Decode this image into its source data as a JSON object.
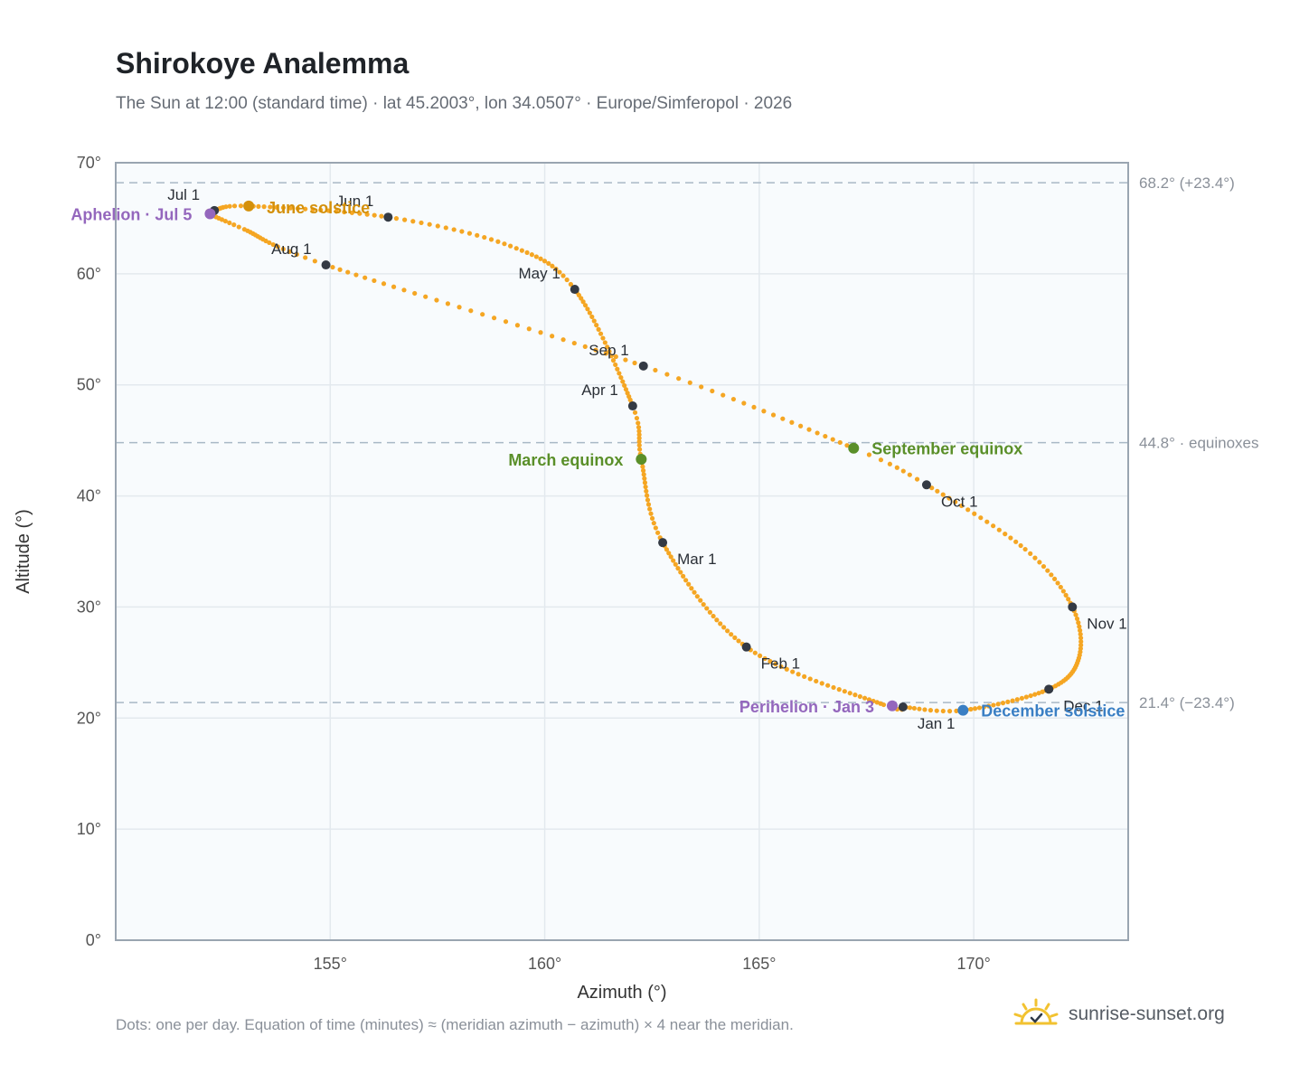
{
  "title": "Shirokoye Analemma",
  "subtitle": "The Sun at 12:00 (standard time) · lat 45.2003°, lon 34.0507° · Europe/Simferopol · 2026",
  "footnote": "Dots: one per day. Equation of time (minutes) ≈ (meridian azimuth − azimuth) × 4 near the meridian.",
  "brand": {
    "name": "sunrise-sunset.org",
    "logo_icon": "sun-check-icon"
  },
  "colors": {
    "path": "#f5a623",
    "month_dot": "#343a44",
    "june_solstice": "#d4900a",
    "december_solstice": "#3a7fc4",
    "equinox": "#5a8f29",
    "apsis": "#9467bd",
    "reference_line": "#a9b8c6",
    "plot_bg": "#f8fbfd",
    "grid": "#e3e9ee",
    "frame": "#9aa5b1"
  },
  "chart_data": {
    "type": "scatter",
    "xlabel": "Azimuth (°)",
    "ylabel": "Altitude (°)",
    "xlim": [
      150,
      173.6
    ],
    "ylim": [
      0,
      70
    ],
    "x_ticks": [
      {
        "value": 155,
        "label": "155°"
      },
      {
        "value": 160,
        "label": "160°"
      },
      {
        "value": 165,
        "label": "165°"
      },
      {
        "value": 170,
        "label": "170°"
      }
    ],
    "y_ticks": [
      {
        "value": 0,
        "label": "0°"
      },
      {
        "value": 10,
        "label": "10°"
      },
      {
        "value": 20,
        "label": "20°"
      },
      {
        "value": 30,
        "label": "30°"
      },
      {
        "value": 40,
        "label": "40°"
      },
      {
        "value": 50,
        "label": "50°"
      },
      {
        "value": 60,
        "label": "60°"
      },
      {
        "value": 70,
        "label": "70°"
      }
    ],
    "grid": true,
    "reference_lines": [
      {
        "value": 68.2,
        "label": "68.2° (+23.4°)"
      },
      {
        "value": 44.8,
        "label": "44.8° · equinoxes"
      },
      {
        "value": 21.4,
        "label": "21.4° (−23.4°)"
      }
    ],
    "path_dots_per_day": true,
    "analemma_anchors": [
      {
        "day": 0,
        "x": 168.35,
        "y": 21.0
      },
      {
        "day": 4,
        "x": 167.9,
        "y": 21.2
      },
      {
        "day": 31,
        "x": 164.7,
        "y": 26.4
      },
      {
        "day": 59,
        "x": 162.75,
        "y": 35.8
      },
      {
        "day": 78,
        "x": 162.25,
        "y": 43.3
      },
      {
        "day": 90,
        "x": 162.05,
        "y": 48.1
      },
      {
        "day": 120,
        "x": 160.7,
        "y": 58.6
      },
      {
        "day": 135,
        "x": 159.2,
        "y": 62.5
      },
      {
        "day": 151,
        "x": 156.35,
        "y": 65.1
      },
      {
        "day": 171,
        "x": 153.1,
        "y": 66.1
      },
      {
        "day": 181,
        "x": 152.3,
        "y": 65.7
      },
      {
        "day": 185,
        "x": 152.2,
        "y": 65.4
      },
      {
        "day": 195,
        "x": 153.0,
        "y": 64.0
      },
      {
        "day": 212,
        "x": 154.9,
        "y": 60.8
      },
      {
        "day": 243,
        "x": 162.3,
        "y": 51.7
      },
      {
        "day": 265,
        "x": 167.2,
        "y": 44.3
      },
      {
        "day": 273,
        "x": 168.9,
        "y": 41.0
      },
      {
        "day": 290,
        "x": 171.2,
        "y": 35.2
      },
      {
        "day": 304,
        "x": 172.3,
        "y": 30.0
      },
      {
        "day": 318,
        "x": 172.45,
        "y": 25.4
      },
      {
        "day": 334,
        "x": 171.75,
        "y": 22.6
      },
      {
        "day": 354,
        "x": 169.75,
        "y": 20.7
      },
      {
        "day": 365,
        "x": 168.35,
        "y": 21.0
      }
    ],
    "month_markers": [
      {
        "label": "Jan 1",
        "x": 168.35,
        "y": 21.0,
        "anchor": "start",
        "dx": 16,
        "dy": 24
      },
      {
        "label": "Feb 1",
        "x": 164.7,
        "y": 26.4,
        "anchor": "start",
        "dx": 16,
        "dy": 24
      },
      {
        "label": "Mar 1",
        "x": 162.75,
        "y": 35.8,
        "anchor": "start",
        "dx": 16,
        "dy": 24
      },
      {
        "label": "Apr 1",
        "x": 162.05,
        "y": 48.1,
        "anchor": "end",
        "dx": -16,
        "dy": -12
      },
      {
        "label": "May 1",
        "x": 160.7,
        "y": 58.6,
        "anchor": "end",
        "dx": -16,
        "dy": -12
      },
      {
        "label": "Jun 1",
        "x": 156.35,
        "y": 65.1,
        "anchor": "end",
        "dx": -16,
        "dy": -12
      },
      {
        "label": "Jul 1",
        "x": 152.3,
        "y": 65.7,
        "anchor": "end",
        "dx": -16,
        "dy": -12
      },
      {
        "label": "Aug 1",
        "x": 154.9,
        "y": 60.8,
        "anchor": "end",
        "dx": -16,
        "dy": -12
      },
      {
        "label": "Sep 1",
        "x": 162.3,
        "y": 51.7,
        "anchor": "end",
        "dx": -16,
        "dy": -12
      },
      {
        "label": "Oct 1",
        "x": 168.9,
        "y": 41.0,
        "anchor": "start",
        "dx": 16,
        "dy": 24
      },
      {
        "label": "Nov 1",
        "x": 172.3,
        "y": 30.0,
        "anchor": "start",
        "dx": 16,
        "dy": 24
      },
      {
        "label": "Dec 1",
        "x": 171.75,
        "y": 22.6,
        "anchor": "start",
        "dx": 16,
        "dy": 24
      }
    ],
    "events": [
      {
        "label": "June solstice",
        "x": 153.1,
        "y": 66.1,
        "color": "#d4900a",
        "anchor": "start",
        "dx": 20,
        "dy": 8
      },
      {
        "label": "Aphelion · Jul 5",
        "x": 152.2,
        "y": 65.4,
        "color": "#9467bd",
        "anchor": "end",
        "dx": -20,
        "dy": 7
      },
      {
        "label": "March equinox",
        "x": 162.25,
        "y": 43.3,
        "color": "#5a8f29",
        "anchor": "end",
        "dx": -20,
        "dy": 7
      },
      {
        "label": "September equinox",
        "x": 167.2,
        "y": 44.3,
        "color": "#5a8f29",
        "anchor": "start",
        "dx": 20,
        "dy": 7
      },
      {
        "label": "Perihelion · Jan 3",
        "x": 168.1,
        "y": 21.1,
        "color": "#9467bd",
        "anchor": "end",
        "dx": -20,
        "dy": 7
      },
      {
        "label": "December solstice",
        "x": 169.75,
        "y": 20.7,
        "color": "#3a7fc4",
        "anchor": "start",
        "dx": 20,
        "dy": 7
      }
    ]
  }
}
